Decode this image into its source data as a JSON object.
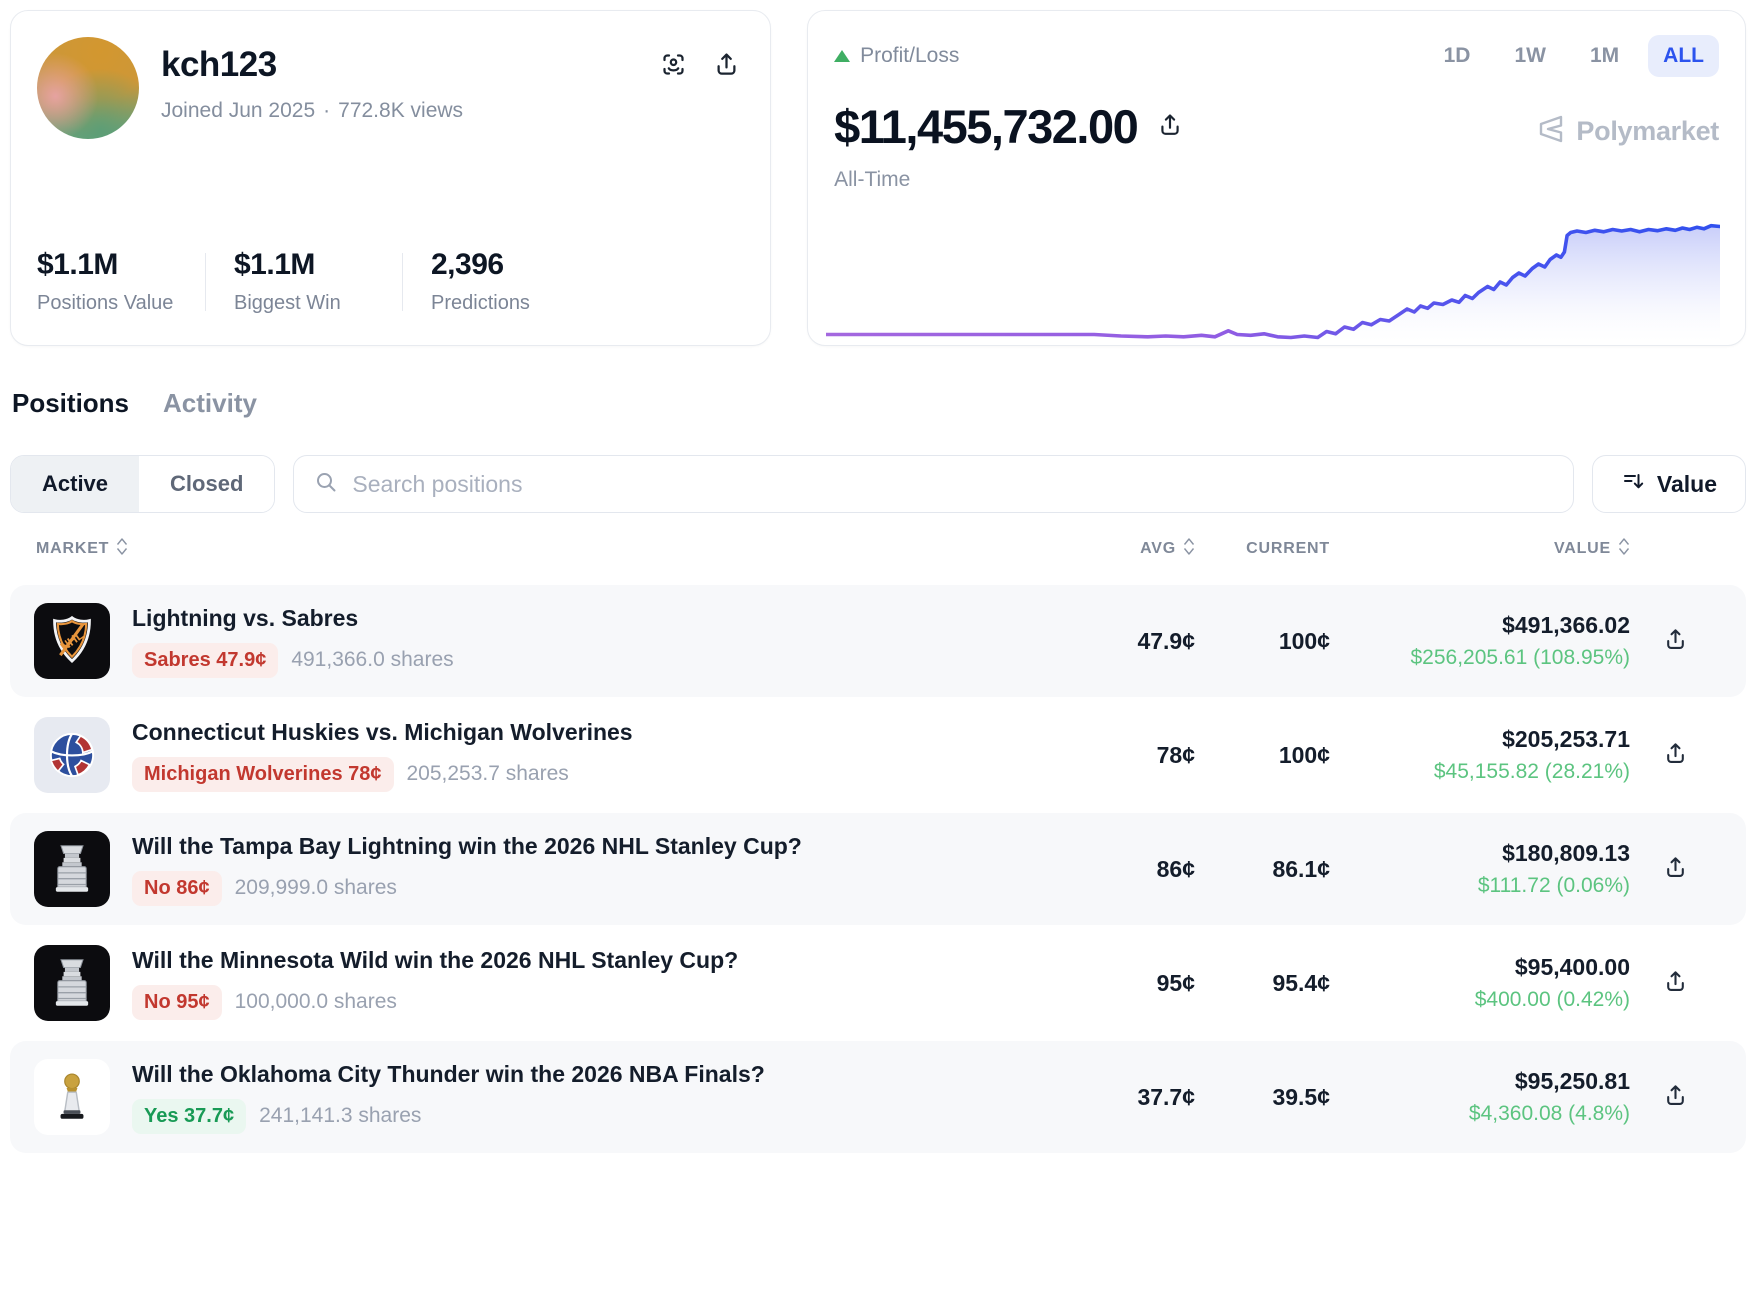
{
  "profile": {
    "username": "kch123",
    "joined": "Joined Jun 2025",
    "separator": "·",
    "views": "772.8K views",
    "stats": [
      {
        "value": "$1.1M",
        "label": "Positions Value"
      },
      {
        "value": "$1.1M",
        "label": "Biggest Win"
      },
      {
        "value": "2,396",
        "label": "Predictions"
      }
    ]
  },
  "pnl": {
    "label": "Profit/Loss",
    "amount": "$11,455,732.00",
    "range_label": "All-Time",
    "filters": [
      {
        "label": "1D",
        "active": false
      },
      {
        "label": "1W",
        "active": false
      },
      {
        "label": "1M",
        "active": false
      },
      {
        "label": "ALL",
        "active": true
      }
    ],
    "brand": "Polymarket",
    "colors": {
      "accent_blue": "#2c53ee",
      "accent_blue_bg": "#e8edfc",
      "up_green": "#3fae63",
      "line_purple": "#a468df",
      "line_blue": "#3050ee",
      "fill_top": "rgba(108,122,240,0.40)"
    },
    "chart": {
      "type": "area",
      "points": [
        [
          0,
          93
        ],
        [
          10,
          93
        ],
        [
          20,
          93
        ],
        [
          30,
          93
        ],
        [
          33,
          94
        ],
        [
          36,
          94.5
        ],
        [
          38,
          94
        ],
        [
          40,
          94.5
        ],
        [
          42,
          93.5
        ],
        [
          43.5,
          94.5
        ],
        [
          45,
          90.5
        ],
        [
          46,
          93
        ],
        [
          47.5,
          93.5
        ],
        [
          49,
          92.5
        ],
        [
          50.5,
          94.5
        ],
        [
          52,
          95
        ],
        [
          53.5,
          94
        ],
        [
          55,
          95
        ],
        [
          56,
          91
        ],
        [
          57,
          92.5
        ],
        [
          58,
          88
        ],
        [
          59,
          89.5
        ],
        [
          60,
          85
        ],
        [
          61,
          86.5
        ],
        [
          62,
          83
        ],
        [
          63,
          84
        ],
        [
          64,
          80
        ],
        [
          65,
          76
        ],
        [
          65.8,
          78
        ],
        [
          66.5,
          74
        ],
        [
          67.3,
          75.5
        ],
        [
          68,
          72
        ],
        [
          69,
          73
        ],
        [
          70,
          70
        ],
        [
          70.8,
          71.5
        ],
        [
          71.5,
          67
        ],
        [
          72.3,
          69
        ],
        [
          73,
          65
        ],
        [
          74,
          61
        ],
        [
          74.7,
          63
        ],
        [
          75.4,
          58
        ],
        [
          76.1,
          60
        ],
        [
          76.8,
          55
        ],
        [
          77.5,
          52
        ],
        [
          78.2,
          54
        ],
        [
          79,
          49
        ],
        [
          79.7,
          46
        ],
        [
          80.4,
          48
        ],
        [
          81,
          43
        ],
        [
          81.7,
          40
        ],
        [
          82.2,
          41.5
        ],
        [
          82.6,
          38
        ],
        [
          82.9,
          27
        ],
        [
          83.3,
          25
        ],
        [
          84,
          24
        ],
        [
          85,
          25
        ],
        [
          86,
          23.5
        ],
        [
          87,
          24.5
        ],
        [
          88,
          23
        ],
        [
          89,
          24
        ],
        [
          90,
          23
        ],
        [
          91,
          24.5
        ],
        [
          92,
          23
        ],
        [
          93,
          23.8
        ],
        [
          94,
          22.5
        ],
        [
          95,
          23.5
        ],
        [
          95.8,
          22
        ],
        [
          96.6,
          23
        ],
        [
          97.4,
          21.5
        ],
        [
          98.2,
          22.5
        ],
        [
          99,
          20.5
        ],
        [
          100,
          21
        ]
      ]
    }
  },
  "tabs": [
    {
      "label": "Positions",
      "active": true
    },
    {
      "label": "Activity",
      "active": false
    }
  ],
  "filter_bar": {
    "segments": [
      {
        "label": "Active",
        "active": true
      },
      {
        "label": "Closed",
        "active": false
      }
    ],
    "search_placeholder": "Search positions",
    "sort_label": "Value"
  },
  "table": {
    "headers": {
      "market": "MARKET",
      "avg": "AVG",
      "current": "CURRENT",
      "value": "VALUE"
    },
    "rows": [
      {
        "icon": "nhl-logo",
        "title": "Lightning vs. Sabres",
        "badge": {
          "text": "Sabres 47.9¢",
          "kind": "red"
        },
        "shares": "491,366.0 shares",
        "avg": "47.9¢",
        "current": "100¢",
        "value": "$491,366.02",
        "change": "$256,205.61 (108.95%)"
      },
      {
        "icon": "basketball",
        "title": "Connecticut Huskies vs. Michigan Wolverines",
        "badge": {
          "text": "Michigan Wolverines 78¢",
          "kind": "red"
        },
        "shares": "205,253.7 shares",
        "avg": "78¢",
        "current": "100¢",
        "value": "$205,253.71",
        "change": "$45,155.82 (28.21%)"
      },
      {
        "icon": "stanley-cup",
        "title": "Will the Tampa Bay Lightning win the 2026 NHL Stanley Cup?",
        "badge": {
          "text": "No 86¢",
          "kind": "red"
        },
        "shares": "209,999.0 shares",
        "avg": "86¢",
        "current": "86.1¢",
        "value": "$180,809.13",
        "change": "$111.72 (0.06%)"
      },
      {
        "icon": "stanley-cup",
        "title": "Will the Minnesota Wild win the 2026 NHL Stanley Cup?",
        "badge": {
          "text": "No 95¢",
          "kind": "red"
        },
        "shares": "100,000.0 shares",
        "avg": "95¢",
        "current": "95.4¢",
        "value": "$95,400.00",
        "change": "$400.00 (0.42%)"
      },
      {
        "icon": "nba-trophy",
        "title": "Will the Oklahoma City Thunder win the 2026 NBA Finals?",
        "badge": {
          "text": "Yes 37.7¢",
          "kind": "green"
        },
        "shares": "241,141.3 shares",
        "avg": "37.7¢",
        "current": "39.5¢",
        "value": "$95,250.81",
        "change": "$4,360.08 (4.8%)"
      }
    ]
  }
}
